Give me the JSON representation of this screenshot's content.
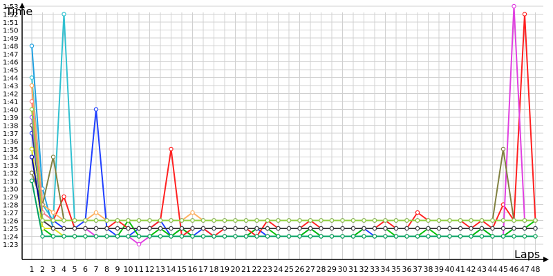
{
  "chart_data": {
    "type": "line",
    "xlabel": "Laps",
    "ylabel": "Time",
    "grid": true,
    "y_unit": "seconds",
    "ylim_seconds": [
      82,
      114.5
    ],
    "xlim": [
      0,
      48
    ],
    "y_ticks": [
      "1:23",
      "1:24",
      "1:25",
      "1:26",
      "1:27",
      "1:28",
      "1:29",
      "1:30",
      "1:31",
      "1:32",
      "1:33",
      "1:34",
      "1:35",
      "1:36",
      "1:37",
      "1:38",
      "1:39",
      "1:40",
      "1:41",
      "1:42",
      "1:43",
      "1:44",
      "1:45",
      "1:46",
      "1:47",
      "1:48",
      "1:49",
      "1:50",
      "1:51",
      "1:52",
      "1:53"
    ],
    "x_ticks": [
      "1",
      "2",
      "3",
      "4",
      "5",
      "6",
      "7",
      "8",
      "9",
      "10",
      "11",
      "12",
      "13",
      "14",
      "15",
      "16",
      "17",
      "18",
      "19",
      "20",
      "21",
      "22",
      "23",
      "24",
      "25",
      "26",
      "27",
      "28",
      "29",
      "30",
      "31",
      "32",
      "33",
      "34",
      "35",
      "36",
      "37",
      "38",
      "39",
      "40",
      "41",
      "42",
      "43",
      "44",
      "45",
      "46",
      "47",
      "48"
    ],
    "series": [
      {
        "color": "#1f3fff",
        "values": [
          97,
          87,
          86,
          85,
          85,
          86,
          100,
          85,
          84,
          84,
          85,
          85,
          86,
          84,
          85,
          84,
          85,
          84,
          84,
          84,
          84,
          85,
          84,
          84,
          84,
          84,
          85,
          84,
          84,
          84,
          84,
          85,
          84,
          84,
          84,
          84,
          84,
          84,
          84,
          84,
          84,
          84,
          85,
          84,
          84,
          85,
          85,
          85
        ]
      },
      {
        "color": "#00c000",
        "values": [
          95,
          85,
          84,
          84,
          84,
          84,
          84,
          84,
          84,
          86,
          84,
          84,
          85,
          84,
          85,
          84,
          84,
          84,
          84,
          84,
          84,
          85,
          85,
          84,
          84,
          84,
          85,
          84,
          84,
          84,
          84,
          85,
          85,
          85,
          84,
          84,
          84,
          85,
          84,
          84,
          84,
          84,
          85,
          84,
          84,
          85,
          85,
          86
        ]
      },
      {
        "color": "#ff2020",
        "values": [
          103,
          86,
          86,
          89,
          85,
          85,
          85,
          85,
          86,
          85,
          85,
          85,
          86,
          95,
          84,
          85,
          85,
          84,
          85,
          85,
          85,
          84,
          86,
          85,
          85,
          85,
          86,
          85,
          85,
          85,
          85,
          85,
          85,
          86,
          85,
          85,
          87,
          86,
          86,
          86,
          86,
          85,
          86,
          85,
          88,
          86,
          112,
          86
        ]
      },
      {
        "color": "#30c0d0",
        "values": [
          104,
          88,
          86,
          112,
          86,
          86,
          86,
          86,
          86,
          86,
          86,
          86,
          86,
          86,
          86,
          86,
          86,
          86,
          86,
          86,
          86,
          86,
          86,
          86,
          86,
          86,
          86,
          86,
          86,
          86,
          86,
          86,
          86,
          86,
          86,
          86,
          86,
          86,
          86,
          86,
          86,
          86,
          86,
          86,
          86,
          86,
          86,
          86
        ]
      },
      {
        "color": "#20a0e0",
        "values": [
          108,
          90,
          85,
          85,
          85,
          85,
          85,
          85,
          85,
          85,
          85,
          85,
          85,
          85,
          85,
          85,
          85,
          85,
          85,
          85,
          85,
          85,
          85,
          85,
          85,
          85,
          85,
          85,
          85,
          85,
          85,
          85,
          85,
          85,
          85,
          85,
          85,
          85,
          85,
          85,
          85,
          85,
          85,
          85,
          85,
          85,
          85,
          85
        ]
      },
      {
        "color": "#e040e0",
        "values": [
          99,
          86,
          85,
          85,
          85,
          85,
          84,
          84,
          84,
          84,
          83,
          84,
          84,
          84,
          84,
          84,
          84,
          84,
          84,
          84,
          84,
          84,
          84,
          84,
          84,
          84,
          84,
          84,
          84,
          84,
          84,
          84,
          84,
          84,
          84,
          84,
          84,
          84,
          84,
          84,
          84,
          84,
          84,
          84,
          84,
          113,
          86,
          86
        ]
      },
      {
        "color": "#ffb060",
        "values": [
          103,
          88,
          87,
          86,
          86,
          86,
          87,
          86,
          86,
          86,
          86,
          86,
          86,
          86,
          86,
          87,
          86,
          86,
          86,
          86,
          86,
          86,
          86,
          86,
          86,
          86,
          86,
          86,
          86,
          86,
          86,
          86,
          86,
          86,
          86,
          86,
          86,
          86,
          86,
          86,
          86,
          86,
          86,
          86,
          86,
          86,
          86,
          86
        ]
      },
      {
        "color": "#808040",
        "values": [
          92,
          88,
          94,
          86,
          86,
          86,
          86,
          86,
          86,
          86,
          86,
          86,
          86,
          86,
          86,
          86,
          86,
          86,
          86,
          86,
          86,
          86,
          86,
          86,
          86,
          86,
          86,
          86,
          86,
          86,
          86,
          86,
          86,
          86,
          86,
          86,
          86,
          86,
          86,
          86,
          86,
          86,
          86,
          86,
          95,
          86,
          86,
          86
        ]
      },
      {
        "color": "#e0e020",
        "values": [
          95,
          85,
          85,
          84,
          84,
          84,
          84,
          84,
          84,
          84,
          84,
          84,
          84,
          84,
          84,
          84,
          84,
          84,
          84,
          84,
          84,
          84,
          84,
          84,
          84,
          84,
          84,
          84,
          84,
          84,
          84,
          84,
          84,
          84,
          84,
          84,
          84,
          84,
          84,
          84,
          84,
          84,
          84,
          84,
          84,
          84,
          84,
          84
        ]
      },
      {
        "color": "#c0c0c0",
        "values": [
          100,
          86,
          86,
          86,
          86,
          86,
          86,
          86,
          86,
          86,
          86,
          86,
          86,
          86,
          86,
          86,
          86,
          86,
          86,
          86,
          86,
          86,
          86,
          86,
          86,
          86,
          86,
          86,
          86,
          86,
          86,
          86,
          86,
          86,
          86,
          86,
          86,
          86,
          86,
          86,
          86,
          86,
          86,
          86,
          86,
          86,
          86,
          86
        ]
      },
      {
        "color": "#ff8080",
        "values": [
          101,
          87,
          86,
          86,
          86,
          86,
          86,
          86,
          86,
          86,
          86,
          86,
          86,
          86,
          86,
          86,
          86,
          86,
          86,
          86,
          86,
          86,
          86,
          86,
          86,
          86,
          86,
          86,
          86,
          86,
          86,
          86,
          86,
          86,
          86,
          86,
          86,
          86,
          86,
          86,
          86,
          86,
          86,
          86,
          86,
          86,
          86,
          86
        ]
      },
      {
        "color": "#404040",
        "values": [
          98,
          86,
          85,
          85,
          85,
          85,
          85,
          85,
          85,
          85,
          85,
          85,
          85,
          85,
          85,
          85,
          85,
          85,
          85,
          85,
          85,
          85,
          85,
          85,
          85,
          85,
          85,
          85,
          85,
          85,
          85,
          85,
          85,
          85,
          85,
          85,
          85,
          85,
          85,
          85,
          85,
          85,
          85,
          85,
          85,
          85,
          85,
          85
        ]
      },
      {
        "color": "#0000a0",
        "values": [
          94,
          86,
          86,
          86,
          86,
          86,
          86,
          86,
          86,
          86,
          86,
          86,
          86,
          86,
          86,
          86,
          86,
          86,
          86,
          86,
          86,
          86,
          86,
          86,
          86,
          86,
          86,
          86,
          86,
          86,
          86,
          86,
          86,
          86,
          86,
          86,
          86,
          86,
          86,
          86,
          86,
          86,
          86,
          86,
          86,
          86,
          86,
          86
        ]
      },
      {
        "color": "#00a060",
        "values": [
          91,
          84,
          84,
          84,
          84,
          84,
          84,
          84,
          84,
          84,
          84,
          84,
          84,
          84,
          84,
          84,
          84,
          84,
          84,
          84,
          84,
          84,
          84,
          84,
          84,
          84,
          84,
          84,
          84,
          84,
          84,
          84,
          84,
          84,
          84,
          84,
          84,
          84,
          84,
          84,
          84,
          84,
          84,
          84,
          84,
          84,
          84,
          84
        ]
      },
      {
        "color": "#9060ff",
        "values": [
          99,
          86,
          86,
          86,
          86,
          86,
          86,
          86,
          86,
          86,
          86,
          86,
          86,
          86,
          86,
          86,
          86,
          86,
          86,
          86,
          86,
          86,
          86,
          86,
          86,
          86,
          86,
          86,
          86,
          86,
          86,
          86,
          86,
          86,
          86,
          86,
          86,
          86,
          86,
          86,
          86,
          86,
          86,
          86,
          86,
          86,
          86,
          86
        ]
      },
      {
        "color": "#90d040",
        "values": [
          100,
          86,
          86,
          86,
          86,
          86,
          86,
          86,
          86,
          86,
          86,
          86,
          86,
          86,
          86,
          86,
          86,
          86,
          86,
          86,
          86,
          86,
          86,
          86,
          86,
          86,
          86,
          86,
          86,
          86,
          86,
          86,
          86,
          86,
          86,
          86,
          86,
          86,
          86,
          86,
          86,
          86,
          86,
          86,
          86,
          86,
          86,
          86
        ]
      }
    ]
  }
}
